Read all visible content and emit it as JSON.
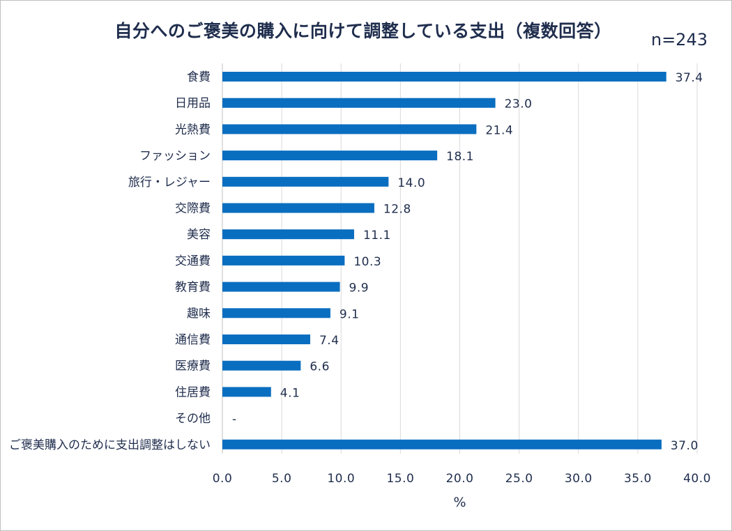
{
  "title": "自分へのご褒美の購入に向けて調整している支出（複数回答）",
  "n_label": "n=243",
  "chart_data": {
    "type": "bar",
    "orientation": "horizontal",
    "title": "自分へのご褒美の購入に向けて調整している支出（複数回答）",
    "xlabel": "%",
    "xlim": [
      0,
      40
    ],
    "xticks": [
      "0.0",
      "5.0",
      "10.0",
      "15.0",
      "20.0",
      "25.0",
      "30.0",
      "35.0",
      "40.0"
    ],
    "grid": "vertical",
    "bar_color": "#0a6ec0",
    "categories": [
      "食費",
      "日用品",
      "光熱費",
      "ファッション",
      "旅行・レジャー",
      "交際費",
      "美容",
      "交通費",
      "教育費",
      "趣味",
      "通信費",
      "医療費",
      "住居費",
      "その他",
      "ご褒美購入のために支出調整はしない"
    ],
    "values": [
      37.4,
      23.0,
      21.4,
      18.1,
      14.0,
      12.8,
      11.1,
      10.3,
      9.9,
      9.1,
      7.4,
      6.6,
      4.1,
      null,
      37.0
    ],
    "value_labels": [
      "37.4",
      "23.0",
      "21.4",
      "18.1",
      "14.0",
      "12.8",
      "11.1",
      "10.3",
      "9.9",
      "9.1",
      "7.4",
      "6.6",
      "4.1",
      "-",
      "37.0"
    ]
  }
}
